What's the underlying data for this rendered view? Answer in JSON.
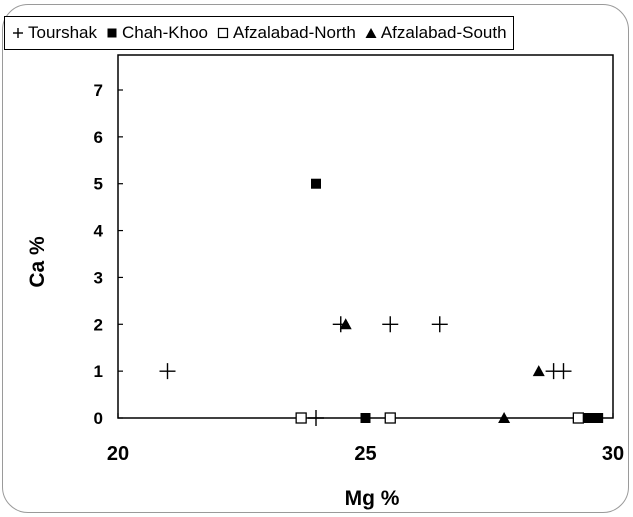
{
  "chart_data": {
    "type": "scatter",
    "title": "",
    "xlabel": "Mg %",
    "ylabel": "Ca %",
    "xlim": [
      20,
      30
    ],
    "ylim": [
      0,
      7
    ],
    "xticks": [
      "20",
      "25",
      "30"
    ],
    "yticks": [
      "0",
      "1",
      "2",
      "3",
      "4",
      "5",
      "6",
      "7"
    ],
    "grid": false,
    "legend_position": "top",
    "series": [
      {
        "name": "Tourshak",
        "marker": "plus",
        "color": "#000000",
        "points": [
          [
            21.0,
            1
          ],
          [
            24.5,
            2
          ],
          [
            25.5,
            2
          ],
          [
            26.5,
            2
          ],
          [
            28.8,
            1
          ],
          [
            29.0,
            1
          ],
          [
            24.0,
            0
          ]
        ]
      },
      {
        "name": "Chah-Khoo",
        "marker": "filled-square",
        "color": "#000000",
        "points": [
          [
            24.0,
            5
          ],
          [
            25.0,
            0
          ],
          [
            29.5,
            0
          ],
          [
            29.6,
            0
          ],
          [
            29.7,
            0
          ]
        ]
      },
      {
        "name": "Afzalabad-North",
        "marker": "open-square",
        "color": "#000000",
        "points": [
          [
            23.7,
            0
          ],
          [
            25.5,
            0
          ],
          [
            29.3,
            0
          ]
        ]
      },
      {
        "name": "Afzalabad-South",
        "marker": "filled-triangle",
        "color": "#000000",
        "points": [
          [
            24.6,
            2
          ],
          [
            27.8,
            0
          ],
          [
            28.5,
            1
          ]
        ]
      }
    ]
  }
}
